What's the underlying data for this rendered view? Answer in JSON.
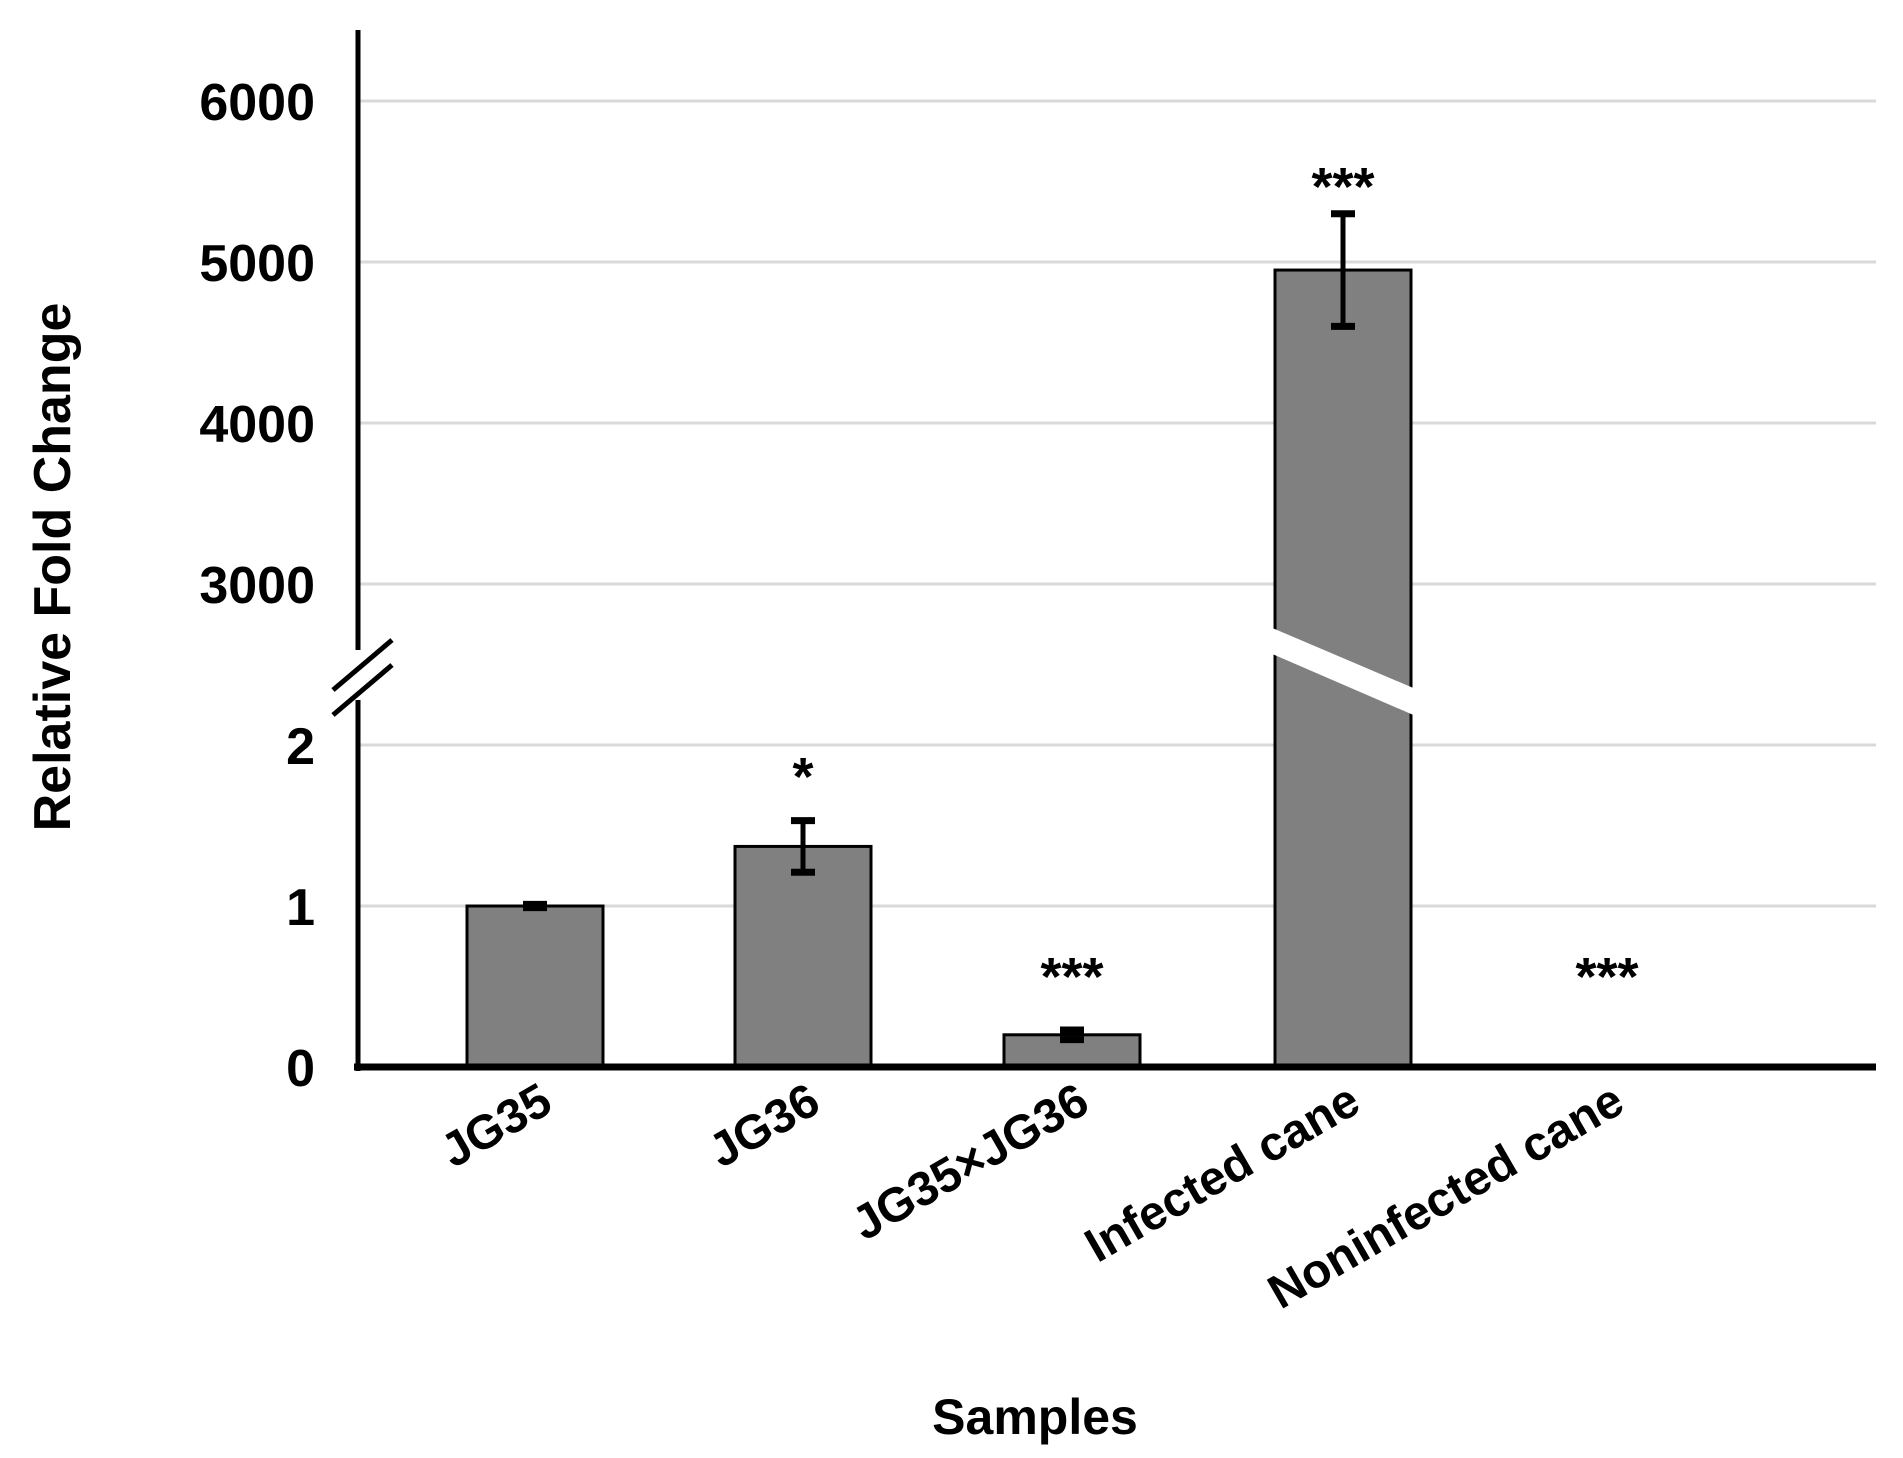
{
  "chart_data": {
    "type": "bar",
    "title": "",
    "xlabel": "Samples",
    "ylabel": "Relative Fold Change",
    "categories": [
      "JG35",
      "JG36",
      "JG35×JG36",
      "Infected cane",
      "Noninfected cane"
    ],
    "values": [
      1.0,
      1.37,
      0.2,
      4950,
      0.01
    ],
    "error": [
      0.01,
      0.16,
      0.03,
      350,
      0
    ],
    "significance": [
      "",
      "*",
      "***",
      "***",
      "***"
    ],
    "y_axis": {
      "broken": true,
      "lower_range": [
        0,
        2
      ],
      "upper_range": [
        3000,
        6000
      ],
      "tick_labels": [
        "0",
        "1",
        "2",
        "3000",
        "4000",
        "5000",
        "6000"
      ]
    },
    "grid": true,
    "bar_color": "#808080",
    "legend": "none"
  }
}
